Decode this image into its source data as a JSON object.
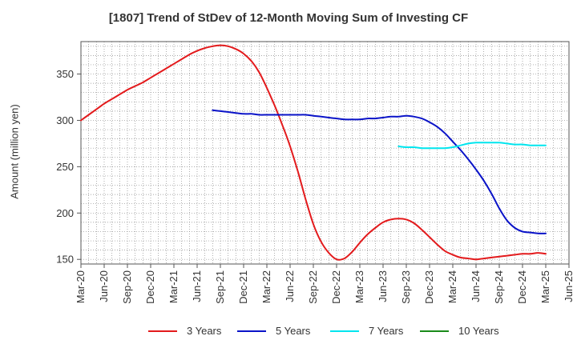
{
  "chart_data": {
    "type": "line",
    "title": "[1807]  Trend of StDev of 12-Month Moving Sum of Investing CF",
    "ylabel": "Amount (million yen)",
    "xlabel": "",
    "ylim": [
      145,
      385
    ],
    "yticks": [
      150,
      200,
      250,
      300,
      350
    ],
    "xlim": [
      "2020-03",
      "2025-06"
    ],
    "xticks": [
      "Mar-20",
      "Jun-20",
      "Sep-20",
      "Dec-20",
      "Mar-21",
      "Jun-21",
      "Sep-21",
      "Dec-21",
      "Mar-22",
      "Jun-22",
      "Sep-22",
      "Dec-22",
      "Mar-23",
      "Jun-23",
      "Sep-23",
      "Dec-23",
      "Mar-24",
      "Jun-24",
      "Sep-24",
      "Dec-24",
      "Mar-25",
      "Jun-25"
    ],
    "grid": true,
    "legend_position": "bottom",
    "series": [
      {
        "name": "3 Years",
        "color": "#e31a1c",
        "points": [
          [
            "2020-03",
            300
          ],
          [
            "2020-04",
            306
          ],
          [
            "2020-05",
            312
          ],
          [
            "2020-06",
            318
          ],
          [
            "2020-07",
            323
          ],
          [
            "2020-08",
            328
          ],
          [
            "2020-09",
            333
          ],
          [
            "2020-10",
            337
          ],
          [
            "2020-11",
            341
          ],
          [
            "2020-12",
            346
          ],
          [
            "2021-01",
            351
          ],
          [
            "2021-02",
            356
          ],
          [
            "2021-03",
            361
          ],
          [
            "2021-04",
            366
          ],
          [
            "2021-05",
            371
          ],
          [
            "2021-06",
            375
          ],
          [
            "2021-07",
            378
          ],
          [
            "2021-08",
            380
          ],
          [
            "2021-09",
            381
          ],
          [
            "2021-10",
            380
          ],
          [
            "2021-11",
            377
          ],
          [
            "2021-12",
            372
          ],
          [
            "2022-01",
            364
          ],
          [
            "2022-02",
            352
          ],
          [
            "2022-03",
            335
          ],
          [
            "2022-04",
            316
          ],
          [
            "2022-05",
            295
          ],
          [
            "2022-06",
            272
          ],
          [
            "2022-07",
            245
          ],
          [
            "2022-08",
            215
          ],
          [
            "2022-09",
            188
          ],
          [
            "2022-10",
            169
          ],
          [
            "2022-11",
            157
          ],
          [
            "2022-12",
            150
          ],
          [
            "2023-01",
            151
          ],
          [
            "2023-02",
            158
          ],
          [
            "2023-03",
            168
          ],
          [
            "2023-04",
            177
          ],
          [
            "2023-05",
            184
          ],
          [
            "2023-06",
            190
          ],
          [
            "2023-07",
            193
          ],
          [
            "2023-08",
            194
          ],
          [
            "2023-09",
            193
          ],
          [
            "2023-10",
            189
          ],
          [
            "2023-11",
            182
          ],
          [
            "2023-12",
            174
          ],
          [
            "2024-01",
            166
          ],
          [
            "2024-02",
            159
          ],
          [
            "2024-03",
            155
          ],
          [
            "2024-04",
            152
          ],
          [
            "2024-05",
            151
          ],
          [
            "2024-06",
            150
          ],
          [
            "2024-07",
            151
          ],
          [
            "2024-08",
            152
          ],
          [
            "2024-09",
            153
          ],
          [
            "2024-10",
            154
          ],
          [
            "2024-11",
            155
          ],
          [
            "2024-12",
            156
          ],
          [
            "2025-01",
            156
          ],
          [
            "2025-02",
            157
          ],
          [
            "2025-03",
            156
          ]
        ]
      },
      {
        "name": "5 Years",
        "color": "#0a13c8",
        "points": [
          [
            "2021-08",
            311
          ],
          [
            "2021-09",
            310
          ],
          [
            "2021-10",
            309
          ],
          [
            "2021-11",
            308
          ],
          [
            "2021-12",
            307
          ],
          [
            "2022-01",
            307
          ],
          [
            "2022-02",
            306
          ],
          [
            "2022-03",
            306
          ],
          [
            "2022-04",
            306
          ],
          [
            "2022-05",
            306
          ],
          [
            "2022-06",
            306
          ],
          [
            "2022-07",
            306
          ],
          [
            "2022-08",
            306
          ],
          [
            "2022-09",
            305
          ],
          [
            "2022-10",
            304
          ],
          [
            "2022-11",
            303
          ],
          [
            "2022-12",
            302
          ],
          [
            "2023-01",
            301
          ],
          [
            "2023-02",
            301
          ],
          [
            "2023-03",
            301
          ],
          [
            "2023-04",
            302
          ],
          [
            "2023-05",
            302
          ],
          [
            "2023-06",
            303
          ],
          [
            "2023-07",
            304
          ],
          [
            "2023-08",
            304
          ],
          [
            "2023-09",
            305
          ],
          [
            "2023-10",
            304
          ],
          [
            "2023-11",
            302
          ],
          [
            "2023-12",
            298
          ],
          [
            "2024-01",
            293
          ],
          [
            "2024-02",
            286
          ],
          [
            "2024-03",
            277
          ],
          [
            "2024-04",
            268
          ],
          [
            "2024-05",
            258
          ],
          [
            "2024-06",
            247
          ],
          [
            "2024-07",
            235
          ],
          [
            "2024-08",
            221
          ],
          [
            "2024-09",
            205
          ],
          [
            "2024-10",
            192
          ],
          [
            "2024-11",
            184
          ],
          [
            "2024-12",
            180
          ],
          [
            "2025-01",
            179
          ],
          [
            "2025-02",
            178
          ],
          [
            "2025-03",
            178
          ]
        ]
      },
      {
        "name": "7 Years",
        "color": "#00e5ee",
        "points": [
          [
            "2023-08",
            272
          ],
          [
            "2023-09",
            271
          ],
          [
            "2023-10",
            271
          ],
          [
            "2023-11",
            270
          ],
          [
            "2023-12",
            270
          ],
          [
            "2024-01",
            270
          ],
          [
            "2024-02",
            270
          ],
          [
            "2024-03",
            271
          ],
          [
            "2024-04",
            273
          ],
          [
            "2024-05",
            275
          ],
          [
            "2024-06",
            276
          ],
          [
            "2024-07",
            276
          ],
          [
            "2024-08",
            276
          ],
          [
            "2024-09",
            276
          ],
          [
            "2024-10",
            275
          ],
          [
            "2024-11",
            274
          ],
          [
            "2024-12",
            274
          ],
          [
            "2025-01",
            273
          ],
          [
            "2025-02",
            273
          ],
          [
            "2025-03",
            273
          ]
        ]
      },
      {
        "name": "10 Years",
        "color": "#1a8a1a",
        "points": []
      }
    ]
  }
}
